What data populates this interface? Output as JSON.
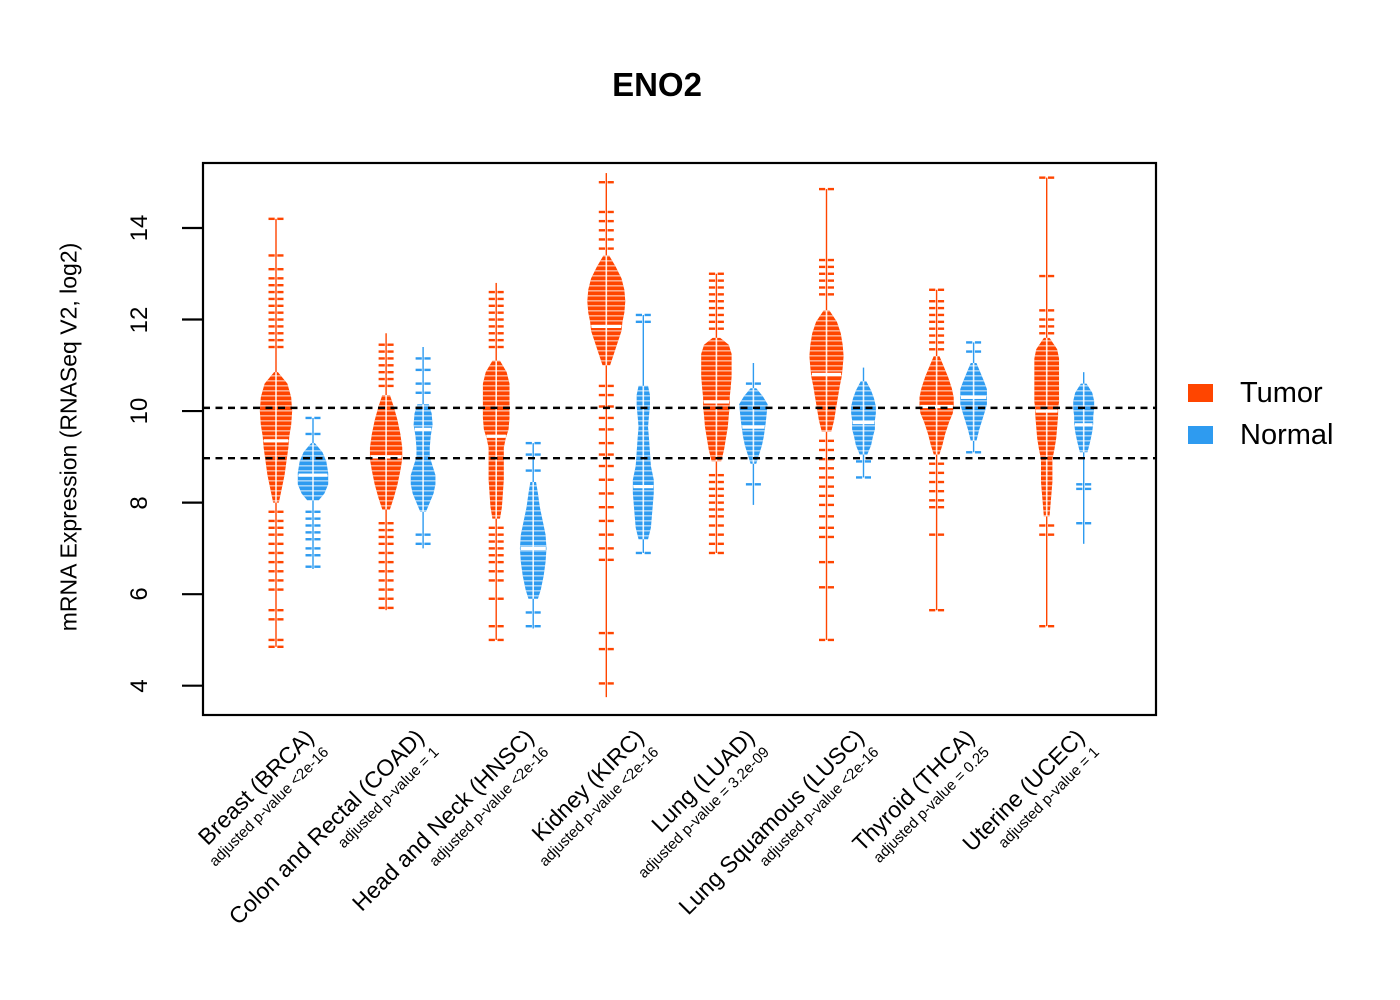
{
  "title": "ENO2",
  "colors": {
    "tumor": "#FF4500",
    "normal": "#2E9BF0",
    "axis": "#000000"
  },
  "y_axis": {
    "label": "mRNA Expression (RNASeq V2, log2)",
    "ticks": [
      4,
      6,
      8,
      10,
      12,
      14
    ]
  },
  "reference_lines": [
    10.07,
    8.97
  ],
  "legend": [
    {
      "label": "Tumor",
      "key": "tumor"
    },
    {
      "label": "Normal",
      "key": "normal"
    }
  ],
  "chart_data": {
    "type": "violin",
    "title": "ENO2",
    "ylabel": "mRNA Expression (RNASeq V2, log2)",
    "ylim": [
      3.36,
      15.42
    ],
    "grid": false,
    "legend_position": "right",
    "categories": [
      {
        "name": "Breast (BRCA)",
        "pvalue": "adjusted p-value <2e-16"
      },
      {
        "name": "Colon and Rectal (COAD)",
        "pvalue": "adjusted p-value = 1"
      },
      {
        "name": "Head and Neck (HNSC)",
        "pvalue": "adjusted p-value <2e-16"
      },
      {
        "name": "Kidney (KIRC)",
        "pvalue": "adjusted p-value <2e-16"
      },
      {
        "name": "Lung (LUAD)",
        "pvalue": "adjusted p-value = 3.2e-09"
      },
      {
        "name": "Lung Squamous (LUSC)",
        "pvalue": "adjusted p-value <2e-16"
      },
      {
        "name": "Thyroid (THCA)",
        "pvalue": "adjusted p-value = 0.25"
      },
      {
        "name": "Uterine (UCEC)",
        "pvalue": "adjusted p-value = 1"
      }
    ],
    "groups": [
      {
        "cat": 0,
        "group": "Tumor",
        "range": [
          4.85,
          14.2
        ],
        "median": 9.35,
        "profile": [
          [
            10.85,
            1
          ],
          [
            10.6,
            6
          ],
          [
            10.3,
            8
          ],
          [
            10.0,
            8.5
          ],
          [
            9.7,
            8
          ],
          [
            9.45,
            7
          ],
          [
            9.2,
            6.5
          ],
          [
            8.9,
            5.5
          ],
          [
            8.6,
            4.5
          ],
          [
            8.3,
            3
          ],
          [
            8.0,
            1.5
          ]
        ],
        "outliers": [
          14.2,
          13.4,
          13.1,
          12.9,
          12.75,
          12.6,
          12.45,
          12.3,
          12.15,
          12.0,
          11.85,
          11.7,
          11.55,
          11.4,
          7.8,
          7.6,
          7.45,
          7.3,
          7.1,
          6.9,
          6.7,
          6.5,
          6.3,
          6.1,
          5.65,
          5.45,
          5.0,
          4.85
        ]
      },
      {
        "cat": 0,
        "group": "Normal",
        "range": [
          6.55,
          9.85
        ],
        "median": 8.6,
        "profile": [
          [
            9.3,
            1
          ],
          [
            9.1,
            5
          ],
          [
            8.9,
            7
          ],
          [
            8.65,
            8
          ],
          [
            8.4,
            8
          ],
          [
            8.2,
            6
          ],
          [
            8.05,
            3
          ]
        ],
        "outliers": [
          9.85,
          9.5,
          7.8,
          7.65,
          7.5,
          7.35,
          7.2,
          7.0,
          6.85,
          6.6
        ]
      },
      {
        "cat": 1,
        "group": "Tumor",
        "range": [
          5.65,
          11.7
        ],
        "median": 9.0,
        "profile": [
          [
            10.35,
            2
          ],
          [
            10.1,
            4
          ],
          [
            9.8,
            6
          ],
          [
            9.5,
            7.5
          ],
          [
            9.2,
            8.5
          ],
          [
            8.95,
            8.5
          ],
          [
            8.7,
            7.5
          ],
          [
            8.4,
            6
          ],
          [
            8.1,
            4
          ],
          [
            7.85,
            2
          ]
        ],
        "outliers": [
          11.45,
          11.3,
          11.15,
          11.0,
          10.85,
          10.7,
          10.55,
          7.55,
          7.4,
          7.25,
          7.1,
          6.9,
          6.7,
          6.5,
          6.3,
          6.1,
          5.9,
          5.7
        ]
      },
      {
        "cat": 1,
        "group": "Normal",
        "range": [
          7.0,
          11.4
        ],
        "median": 9.6,
        "profile": [
          [
            10.15,
            3
          ],
          [
            9.95,
            4.5
          ],
          [
            9.7,
            5
          ],
          [
            9.45,
            4
          ],
          [
            9.2,
            3.5
          ],
          [
            9.0,
            3.5
          ],
          [
            8.8,
            5
          ],
          [
            8.6,
            6.5
          ],
          [
            8.4,
            6.5
          ],
          [
            8.2,
            5.5
          ],
          [
            8.0,
            3.5
          ],
          [
            7.8,
            1.5
          ]
        ],
        "outliers": [
          11.15,
          10.9,
          10.6,
          10.4,
          7.3,
          7.1
        ]
      },
      {
        "cat": 2,
        "group": "Tumor",
        "range": [
          5.0,
          12.8
        ],
        "median": 9.45,
        "profile": [
          [
            11.1,
            2
          ],
          [
            10.85,
            5.5
          ],
          [
            10.6,
            7
          ],
          [
            10.35,
            7
          ],
          [
            10.1,
            7
          ],
          [
            9.85,
            7
          ],
          [
            9.6,
            6.5
          ],
          [
            9.4,
            5
          ],
          [
            9.2,
            4
          ],
          [
            9.0,
            4
          ],
          [
            8.75,
            4
          ],
          [
            8.5,
            4
          ],
          [
            8.2,
            3.5
          ],
          [
            7.9,
            3
          ],
          [
            7.65,
            2
          ]
        ],
        "outliers": [
          12.6,
          12.45,
          12.3,
          12.15,
          12.0,
          11.85,
          11.7,
          11.55,
          11.4,
          7.45,
          7.3,
          7.15,
          7.0,
          6.85,
          6.7,
          6.5,
          6.3,
          5.9,
          5.3,
          5.0
        ]
      },
      {
        "cat": 2,
        "group": "Normal",
        "range": [
          5.25,
          9.3
        ],
        "median": 7.0,
        "profile": [
          [
            8.45,
            1.5
          ],
          [
            8.2,
            2.5
          ],
          [
            7.9,
            3.5
          ],
          [
            7.6,
            5
          ],
          [
            7.3,
            6.5
          ],
          [
            7.0,
            7
          ],
          [
            6.7,
            6.5
          ],
          [
            6.4,
            5.5
          ],
          [
            6.1,
            4
          ],
          [
            5.9,
            2.5
          ]
        ],
        "outliers": [
          9.3,
          9.05,
          8.7,
          5.6,
          5.3
        ]
      },
      {
        "cat": 3,
        "group": "Tumor",
        "range": [
          3.75,
          15.2
        ],
        "median": 11.85,
        "profile": [
          [
            13.4,
            1.5
          ],
          [
            13.15,
            5
          ],
          [
            12.9,
            8
          ],
          [
            12.65,
            9.5
          ],
          [
            12.4,
            10
          ],
          [
            12.15,
            9.5
          ],
          [
            11.95,
            8.5
          ],
          [
            11.75,
            8
          ],
          [
            11.5,
            6
          ],
          [
            11.25,
            4
          ],
          [
            11.0,
            2
          ]
        ],
        "outliers": [
          15.0,
          14.35,
          14.15,
          13.95,
          13.75,
          13.55,
          10.55,
          10.35,
          10.1,
          9.85,
          9.6,
          9.3,
          9.05,
          8.8,
          8.5,
          8.2,
          7.9,
          7.6,
          7.3,
          7.0,
          6.75,
          5.15,
          4.8,
          4.05
        ]
      },
      {
        "cat": 3,
        "group": "Normal",
        "range": [
          6.9,
          12.1
        ],
        "median": 8.35,
        "profile": [
          [
            10.55,
            2.5
          ],
          [
            10.35,
            3.5
          ],
          [
            10.1,
            3.5
          ],
          [
            9.9,
            3
          ],
          [
            9.65,
            2.5
          ],
          [
            9.4,
            3
          ],
          [
            9.1,
            3.5
          ],
          [
            8.8,
            4
          ],
          [
            8.5,
            5.5
          ],
          [
            8.2,
            5.5
          ],
          [
            7.95,
            5
          ],
          [
            7.7,
            4.5
          ],
          [
            7.45,
            4
          ],
          [
            7.2,
            2.5
          ]
        ],
        "outliers": [
          12.1,
          11.95,
          6.9
        ]
      },
      {
        "cat": 4,
        "group": "Tumor",
        "range": [
          6.9,
          13.0
        ],
        "median": 10.2,
        "profile": [
          [
            11.6,
            2
          ],
          [
            11.45,
            6.5
          ],
          [
            11.25,
            8
          ],
          [
            11.0,
            8
          ],
          [
            10.75,
            8
          ],
          [
            10.5,
            7.5
          ],
          [
            10.3,
            7
          ],
          [
            10.1,
            7
          ],
          [
            9.9,
            6.5
          ],
          [
            9.65,
            6
          ],
          [
            9.4,
            5
          ],
          [
            9.15,
            4
          ],
          [
            8.9,
            2.5
          ]
        ],
        "outliers": [
          13.0,
          12.85,
          12.7,
          12.55,
          12.4,
          12.25,
          12.1,
          11.95,
          11.8,
          8.6,
          8.45,
          8.3,
          8.15,
          8.0,
          7.85,
          7.7,
          7.5,
          7.3,
          7.1,
          6.9
        ]
      },
      {
        "cat": 4,
        "group": "Normal",
        "range": [
          7.95,
          11.05
        ],
        "median": 9.65,
        "profile": [
          [
            10.5,
            1.5
          ],
          [
            10.32,
            5
          ],
          [
            10.15,
            7.5
          ],
          [
            9.95,
            7
          ],
          [
            9.75,
            6.5
          ],
          [
            9.6,
            6
          ],
          [
            9.45,
            5.5
          ],
          [
            9.25,
            4.5
          ],
          [
            9.05,
            3
          ],
          [
            8.85,
            1.5
          ]
        ],
        "outliers": [
          10.6,
          8.4
        ]
      },
      {
        "cat": 5,
        "group": "Tumor",
        "range": [
          5.0,
          14.85
        ],
        "median": 10.8,
        "profile": [
          [
            12.2,
            1.5
          ],
          [
            11.95,
            5.5
          ],
          [
            11.7,
            7.5
          ],
          [
            11.45,
            8.5
          ],
          [
            11.2,
            9
          ],
          [
            10.95,
            8.5
          ],
          [
            10.75,
            8
          ],
          [
            10.55,
            7
          ],
          [
            10.3,
            6
          ],
          [
            10.05,
            5
          ],
          [
            9.8,
            4
          ],
          [
            9.55,
            2.5
          ]
        ],
        "outliers": [
          14.85,
          13.3,
          13.15,
          13.0,
          12.85,
          12.7,
          12.55,
          9.35,
          9.15,
          8.95,
          8.75,
          8.55,
          8.35,
          8.15,
          7.95,
          7.7,
          7.45,
          7.25,
          6.7,
          6.15,
          5.0
        ]
      },
      {
        "cat": 5,
        "group": "Normal",
        "range": [
          8.55,
          10.95
        ],
        "median": 9.75,
        "profile": [
          [
            10.65,
            1.5
          ],
          [
            10.45,
            4
          ],
          [
            10.28,
            5.5
          ],
          [
            10.1,
            6.5
          ],
          [
            9.95,
            6.5
          ],
          [
            9.8,
            6
          ],
          [
            9.6,
            6
          ],
          [
            9.45,
            5
          ],
          [
            9.25,
            4
          ],
          [
            9.05,
            2
          ]
        ],
        "outliers": [
          8.9,
          8.55
        ]
      },
      {
        "cat": 6,
        "group": "Tumor",
        "range": [
          5.65,
          12.65
        ],
        "median": 10.1,
        "profile": [
          [
            11.2,
            1.5
          ],
          [
            11.0,
            3.5
          ],
          [
            10.75,
            6
          ],
          [
            10.5,
            8
          ],
          [
            10.3,
            9
          ],
          [
            10.1,
            9
          ],
          [
            9.95,
            8.5
          ],
          [
            9.75,
            6.5
          ],
          [
            9.5,
            4.5
          ],
          [
            9.25,
            3
          ],
          [
            9.05,
            1.5
          ]
        ],
        "outliers": [
          12.65,
          12.4,
          12.25,
          12.1,
          11.95,
          11.8,
          11.65,
          11.5,
          11.35,
          8.85,
          8.65,
          8.45,
          8.25,
          8.05,
          7.9,
          7.3,
          5.65
        ]
      },
      {
        "cat": 6,
        "group": "Normal",
        "range": [
          9.1,
          11.5
        ],
        "median": 10.3,
        "profile": [
          [
            11.05,
            1.5
          ],
          [
            10.85,
            3.5
          ],
          [
            10.65,
            5.5
          ],
          [
            10.48,
            7
          ],
          [
            10.3,
            7
          ],
          [
            10.15,
            7
          ],
          [
            10.0,
            6
          ],
          [
            9.8,
            4.5
          ],
          [
            9.6,
            3
          ],
          [
            9.35,
            1.5
          ]
        ],
        "outliers": [
          11.5,
          11.3,
          9.1
        ]
      },
      {
        "cat": 7,
        "group": "Tumor",
        "range": [
          5.3,
          15.1
        ],
        "median": 10.0,
        "profile": [
          [
            11.6,
            1.5
          ],
          [
            11.35,
            5.5
          ],
          [
            11.15,
            6.5
          ],
          [
            10.9,
            6.5
          ],
          [
            10.65,
            6.5
          ],
          [
            10.4,
            6.5
          ],
          [
            10.2,
            6.5
          ],
          [
            10.05,
            6
          ],
          [
            9.9,
            6
          ],
          [
            9.65,
            5.5
          ],
          [
            9.4,
            5
          ],
          [
            9.15,
            4
          ],
          [
            8.95,
            3
          ],
          [
            8.7,
            3
          ],
          [
            8.45,
            3
          ],
          [
            8.2,
            2.5
          ],
          [
            7.95,
            2
          ],
          [
            7.7,
            1.5
          ]
        ],
        "outliers": [
          15.1,
          12.95,
          12.2,
          12.0,
          11.85,
          11.7,
          7.5,
          7.3,
          5.3
        ]
      },
      {
        "cat": 7,
        "group": "Normal",
        "range": [
          7.1,
          10.85
        ],
        "median": 9.7,
        "profile": [
          [
            10.6,
            1.5
          ],
          [
            10.4,
            4.5
          ],
          [
            10.22,
            5.5
          ],
          [
            10.05,
            5.5
          ],
          [
            9.88,
            5
          ],
          [
            9.72,
            5
          ],
          [
            9.55,
            4.5
          ],
          [
            9.35,
            3.5
          ],
          [
            9.1,
            2
          ]
        ],
        "outliers": [
          8.4,
          8.3,
          7.55
        ]
      }
    ]
  }
}
